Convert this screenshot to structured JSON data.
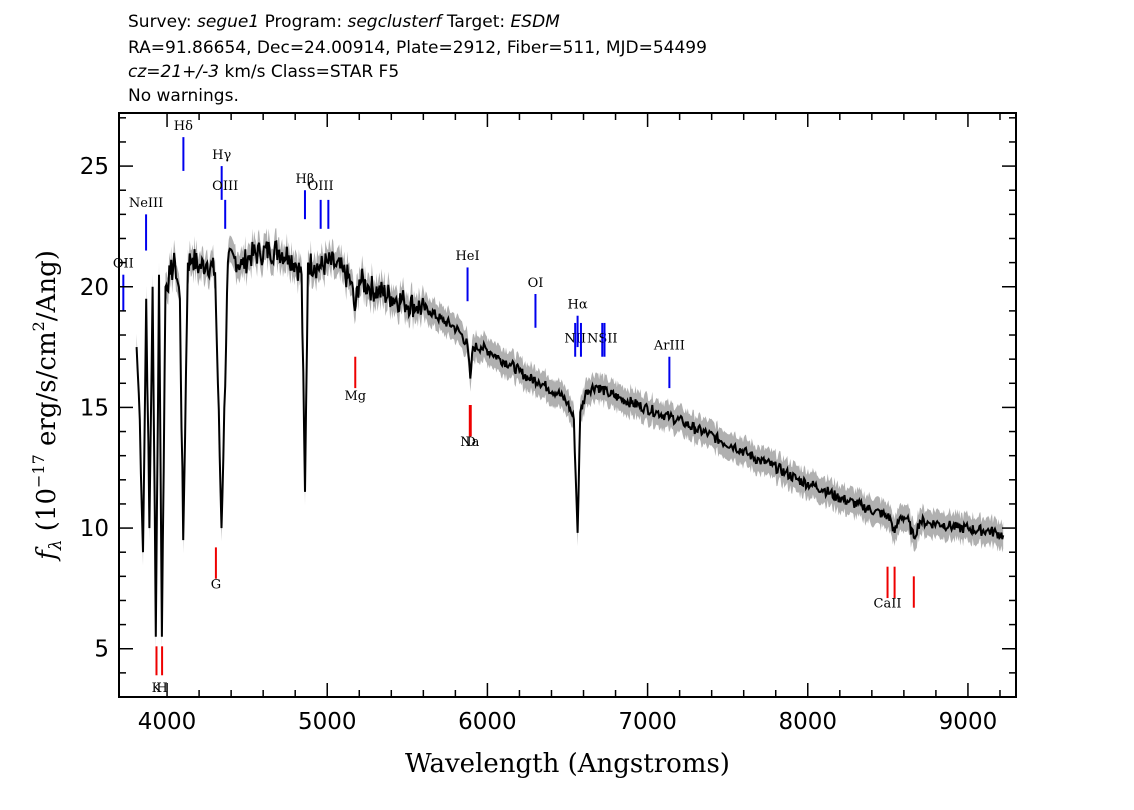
{
  "header": {
    "survey_label": "Survey:",
    "survey": "segue1",
    "program_label": "Program:",
    "program": "segclusterf",
    "target_label": "Target:",
    "target": "ESDM",
    "line2": "RA=91.86654, Dec=24.00914, Plate=2912, Fiber=511, MJD=54499",
    "cz": "cz=21+/-3",
    "cz_rest": " km/s Class=STAR F5",
    "warnings": "No warnings."
  },
  "chart_data": {
    "type": "line",
    "xlabel": "Wavelength (Angstroms)",
    "ylabel_prefix": "f",
    "ylabel_sub": "λ",
    "ylabel_rest": " (10",
    "ylabel_exp": "−17",
    "ylabel_tail": " erg/s/cm",
    "ylabel_exp2": "2",
    "ylabel_end": "/Ang)",
    "xlim": [
      3700,
      9300
    ],
    "ylim": [
      3,
      27.2
    ],
    "xticks": [
      4000,
      5000,
      6000,
      7000,
      8000,
      9000
    ],
    "yticks": [
      5,
      10,
      15,
      20,
      25
    ],
    "grid": false,
    "series": [
      {
        "color": "#000000",
        "x": [
          3810,
          3830,
          3850,
          3870,
          3890,
          3910,
          3930,
          3950,
          3968,
          3990,
          4020,
          4050,
          4080,
          4101,
          4130,
          4160,
          4200,
          4250,
          4300,
          4340,
          4380,
          4420,
          4470,
          4520,
          4580,
          4640,
          4700,
          4760,
          4800,
          4840,
          4861,
          4880,
          4920,
          4960,
          5000,
          5050,
          5100,
          5150,
          5172,
          5200,
          5260,
          5320,
          5400,
          5480,
          5560,
          5640,
          5720,
          5780,
          5830,
          5875,
          5893,
          5910,
          5960,
          6020,
          6080,
          6140,
          6200,
          6260,
          6320,
          6380,
          6440,
          6500,
          6540,
          6563,
          6580,
          6620,
          6680,
          6750,
          6820,
          6900,
          6980,
          7060,
          7140,
          7220,
          7300,
          7380,
          7460,
          7540,
          7620,
          7700,
          7780,
          7860,
          7940,
          8020,
          8100,
          8180,
          8260,
          8340,
          8420,
          8498,
          8520,
          8542,
          8580,
          8620,
          8662,
          8700,
          8760,
          8820,
          8880,
          8940,
          9000,
          9060,
          9120,
          9180,
          9220
        ],
        "values": [
          17.5,
          14.5,
          9.0,
          19.5,
          10.0,
          20.0,
          5.5,
          20.5,
          5.5,
          20.0,
          20.5,
          21.0,
          19.5,
          9.5,
          21.0,
          21.2,
          20.8,
          21.0,
          20.6,
          10.0,
          21.0,
          21.2,
          20.9,
          21.3,
          21.4,
          21.5,
          21.5,
          21.3,
          21.0,
          20.5,
          11.5,
          21.0,
          20.9,
          20.8,
          21.0,
          20.9,
          20.6,
          20.2,
          19.0,
          20.3,
          20.0,
          19.8,
          19.6,
          19.4,
          19.2,
          19.0,
          18.6,
          18.4,
          18.1,
          17.6,
          16.2,
          17.5,
          17.5,
          17.3,
          17.0,
          16.8,
          16.5,
          16.2,
          16.1,
          15.8,
          15.6,
          15.2,
          14.5,
          9.8,
          14.8,
          15.7,
          15.9,
          15.6,
          15.4,
          15.2,
          15.0,
          14.8,
          14.6,
          14.4,
          14.1,
          13.9,
          13.6,
          13.4,
          13.1,
          12.8,
          12.6,
          12.3,
          12.0,
          11.8,
          11.6,
          11.3,
          11.1,
          10.9,
          10.7,
          10.5,
          10.3,
          9.8,
          10.5,
          10.4,
          9.6,
          10.3,
          10.2,
          10.2,
          10.1,
          10.0,
          10.0,
          9.9,
          9.9,
          9.8,
          9.7
        ]
      }
    ],
    "error_color": "#b0b0b0",
    "emission_color": "#0000ee",
    "absorption_color": "#ee0000",
    "emission_lines": [
      {
        "label": "OII",
        "x": 3727,
        "y0": 19.0,
        "y1": 20.5,
        "ly": 20.8
      },
      {
        "label": "NeIII",
        "x": 3869,
        "y0": 21.5,
        "y1": 23.0,
        "ly": 23.3
      },
      {
        "label": "Hδ",
        "x": 4102,
        "y0": 24.8,
        "y1": 26.2,
        "ly": 26.5
      },
      {
        "label": "Hγ",
        "x": 4341,
        "y0": 23.6,
        "y1": 25.0,
        "ly": 25.3
      },
      {
        "label": "OIII",
        "x": 4363,
        "y0": 22.4,
        "y1": 23.6,
        "ly": 24.0
      },
      {
        "label": "Hβ",
        "x": 4861,
        "y0": 22.8,
        "y1": 24.0,
        "ly": 24.3
      },
      {
        "label": "OIII",
        "x": 4959,
        "y0": 22.4,
        "y1": 23.6,
        "ly": 24.0
      },
      {
        "label": "",
        "x": 5007,
        "y0": 22.4,
        "y1": 23.6,
        "ly": 24.0
      },
      {
        "label": "HeI",
        "x": 5876,
        "y0": 19.4,
        "y1": 20.8,
        "ly": 21.1
      },
      {
        "label": "OI",
        "x": 6300,
        "y0": 18.3,
        "y1": 19.7,
        "ly": 20.0
      },
      {
        "label": "NII",
        "x": 6548,
        "y0": 17.1,
        "y1": 18.5,
        "ly": 17.7
      },
      {
        "label": "Hα",
        "x": 6563,
        "y0": 17.5,
        "y1": 18.8,
        "ly": 19.1
      },
      {
        "label": "",
        "x": 6584,
        "y0": 17.1,
        "y1": 18.5,
        "ly": 17.7
      },
      {
        "label": "NSII",
        "x": 6717,
        "y0": 17.1,
        "y1": 18.5,
        "ly": 17.7
      },
      {
        "label": "",
        "x": 6731,
        "y0": 17.1,
        "y1": 18.5,
        "ly": 17.7
      },
      {
        "label": "ArIII",
        "x": 7136,
        "y0": 15.8,
        "y1": 17.1,
        "ly": 17.4
      }
    ],
    "absorption_lines": [
      {
        "label": "K",
        "x": 3934,
        "y0": 3.9,
        "y1": 5.1,
        "ly": 3.2
      },
      {
        "label": "H",
        "x": 3969,
        "y0": 3.9,
        "y1": 5.1,
        "ly": 3.2
      },
      {
        "label": "G",
        "x": 4305,
        "y0": 7.9,
        "y1": 9.2,
        "ly": 7.5
      },
      {
        "label": "Mg",
        "x": 5175,
        "y0": 15.8,
        "y1": 17.1,
        "ly": 15.3
      },
      {
        "label": "Na",
        "x": 5890,
        "y0": 13.8,
        "y1": 15.1,
        "ly": 13.4
      },
      {
        "label": "D",
        "x": 5896,
        "y0": 13.8,
        "y1": 15.1,
        "ly": 13.4
      },
      {
        "label": "CaII",
        "x": 8498,
        "y0": 7.1,
        "y1": 8.4,
        "ly": 6.7
      },
      {
        "label": "",
        "x": 8542,
        "y0": 7.1,
        "y1": 8.4,
        "ly": 6.7
      },
      {
        "label": "",
        "x": 8662,
        "y0": 6.7,
        "y1": 8.0,
        "ly": 6.7
      }
    ]
  }
}
